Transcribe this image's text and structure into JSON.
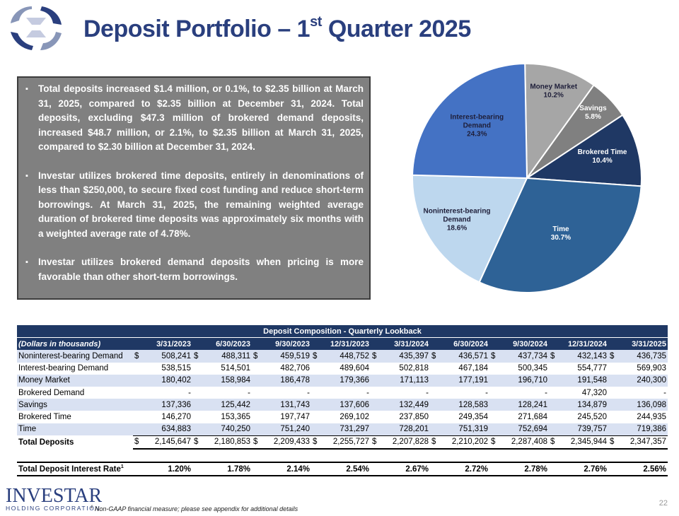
{
  "title": {
    "prefix": "Deposit Portfolio – 1",
    "sup": "st",
    "suffix": " Quarter 2025"
  },
  "bullet_glyph": "▪",
  "bullets": [
    "Total deposits increased $1.4 million, or 0.1%, to $2.35 billion at March 31, 2025, compared to $2.35 billion at December 31, 2024. Total deposits, excluding $47.3 million of brokered demand deposits, increased $48.7 million, or 2.1%, to $2.35 billion at March 31, 2025, compared to $2.30 billion at December 31, 2024.",
    "Investar utilizes brokered time deposits, entirely in denominations of less than $250,000, to secure fixed cost funding and reduce short-term borrowings. At March 31, 2025, the remaining weighted average duration of brokered time deposits was approximately six months with a weighted average rate of 4.78%.",
    "Investar utilizes brokered demand deposits when pricing is more favorable than other short-term borrowings."
  ],
  "chart_data": {
    "type": "pie",
    "title": "",
    "slices": [
      {
        "name": "Money Market",
        "value": 10.2,
        "label": "10.2%",
        "color": "#a6a6a6"
      },
      {
        "name": "Savings",
        "value": 5.8,
        "label": "5.8%",
        "color": "#808080"
      },
      {
        "name": "Brokered Time",
        "value": 10.4,
        "label": "10.4%",
        "color": "#1f3864"
      },
      {
        "name": "Time",
        "value": 30.7,
        "label": "30.7%",
        "color": "#2e6296"
      },
      {
        "name": "Noninterest-bearing Demand",
        "value": 18.6,
        "label": "18.6%",
        "color": "#bdd7ee"
      },
      {
        "name": "Interest-bearing Demand",
        "value": 24.3,
        "label": "24.3%",
        "color": "#4472c4"
      }
    ]
  },
  "table": {
    "title": "Deposit Composition - Quarterly Lookback",
    "first_header": "(Dollars in thousands)",
    "columns": [
      "3/31/2023",
      "6/30/2023",
      "9/30/2023",
      "12/31/2023",
      "3/31/2024",
      "6/30/2024",
      "9/30/2024",
      "12/31/2024",
      "3/31/2025"
    ],
    "rows": [
      {
        "label": "Noninterest-bearing Demand",
        "currency": "$",
        "values": [
          "508,241",
          "488,311",
          "459,519",
          "448,752",
          "435,397",
          "436,571",
          "437,734",
          "432,143",
          "436,735"
        ]
      },
      {
        "label": "Interest-bearing Demand",
        "currency": "",
        "values": [
          "538,515",
          "514,501",
          "482,706",
          "489,604",
          "502,818",
          "467,184",
          "500,345",
          "554,777",
          "569,903"
        ]
      },
      {
        "label": "Money Market",
        "currency": "",
        "values": [
          "180,402",
          "158,984",
          "186,478",
          "179,366",
          "171,113",
          "177,191",
          "196,710",
          "191,548",
          "240,300"
        ]
      },
      {
        "label": "Brokered Demand",
        "currency": "",
        "values": [
          "-",
          "-",
          "-",
          "-",
          "-",
          "-",
          "-",
          "47,320",
          "-"
        ]
      },
      {
        "label": "Savings",
        "currency": "",
        "values": [
          "137,336",
          "125,442",
          "131,743",
          "137,606",
          "132,449",
          "128,583",
          "128,241",
          "134,879",
          "136,098"
        ]
      },
      {
        "label": "Brokered Time",
        "currency": "",
        "values": [
          "146,270",
          "153,365",
          "197,747",
          "269,102",
          "237,850",
          "249,354",
          "271,684",
          "245,520",
          "244,935"
        ]
      },
      {
        "label": "Time",
        "currency": "",
        "values": [
          "634,883",
          "740,250",
          "751,240",
          "731,297",
          "728,201",
          "751,319",
          "752,694",
          "739,757",
          "719,386"
        ]
      }
    ],
    "total": {
      "label": "Total Deposits",
      "currency": "$",
      "values": [
        "2,145,647",
        "2,180,853",
        "2,209,433",
        "2,255,727",
        "2,207,828",
        "2,210,202",
        "2,287,408",
        "2,345,944",
        "2,347,357"
      ]
    },
    "rate": {
      "label": "Total Deposit Interest Rate",
      "sup": "1",
      "values": [
        "1.20%",
        "1.78%",
        "2.14%",
        "2.54%",
        "2.67%",
        "2.72%",
        "2.78%",
        "2.76%",
        "2.56%"
      ]
    }
  },
  "brand": {
    "name": "INVESTAR",
    "sub": "HOLDING CORPORATION"
  },
  "footnote": {
    "sup": "1",
    "text": " Non-GAAP financial measure; please see appendix for additional details"
  },
  "page_number": "22"
}
